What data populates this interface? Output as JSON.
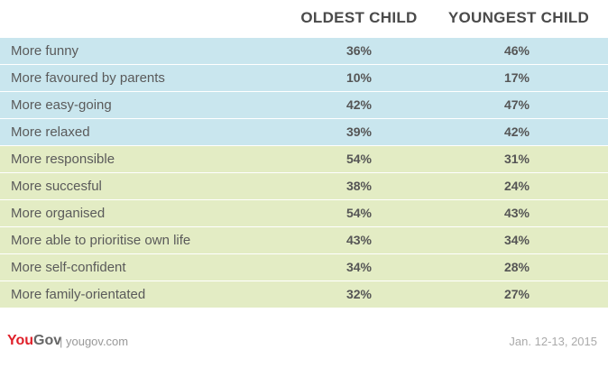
{
  "table": {
    "header": [
      "OLDEST CHILD",
      "YOUNGEST CHILD"
    ],
    "rows": [
      [
        "More funny",
        "36%",
        "46%"
      ],
      [
        "More favoured by parents",
        "10%",
        "17%"
      ],
      [
        "More easy-going",
        "42%",
        "47%"
      ],
      [
        "More relaxed",
        "39%",
        "42%"
      ],
      [
        "More responsible",
        "54%",
        "31%"
      ],
      [
        "More succesful",
        "38%",
        "24%"
      ],
      [
        "More organised",
        "54%",
        "43%"
      ],
      [
        "More able to prioritise own life",
        "43%",
        "34%"
      ],
      [
        "More self-confident",
        "34%",
        "28%"
      ],
      [
        "More family-orientated",
        "32%",
        "27%"
      ]
    ]
  },
  "footer": {
    "logo_you": "You",
    "logo_gov": "Gov",
    "site": "| yougov.com",
    "date": "Jan. 12-13, 2015"
  }
}
